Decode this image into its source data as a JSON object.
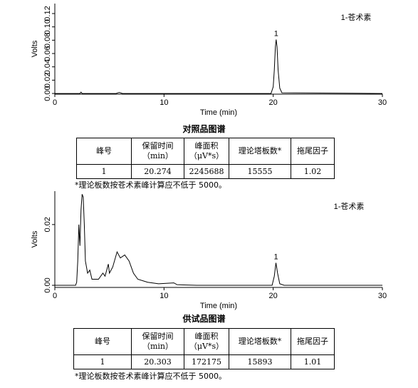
{
  "chart_data": [
    {
      "type": "line",
      "x_label": "Time (min)",
      "y_label": "Volts",
      "annotation": "1-苍术素",
      "peak_label": "1",
      "color": "#000000",
      "x": [
        0,
        2.3,
        2.4,
        2.5,
        3.2,
        5.6,
        5.9,
        6.2,
        19.8,
        20.0,
        20.1,
        20.2,
        20.27,
        20.35,
        20.45,
        20.6,
        20.8,
        30
      ],
      "values": [
        0,
        0,
        0.002,
        0,
        0,
        0,
        0.0015,
        0,
        0,
        0.01,
        0.035,
        0.07,
        0.081,
        0.07,
        0.035,
        0.008,
        0.001,
        0
      ],
      "xlim": [
        0,
        30
      ],
      "xticks": [
        0,
        10,
        20,
        30
      ],
      "ylim": [
        -0.001,
        0.135
      ],
      "yticks": [
        {
          "value": 0,
          "label": "0.00"
        },
        {
          "value": 0.02,
          "label": "0.02"
        },
        {
          "value": 0.04,
          "label": "0.04"
        },
        {
          "value": 0.06,
          "label": "0.06"
        },
        {
          "value": 0.08,
          "label": "0.08"
        },
        {
          "value": 0.1,
          "label": "0.10"
        },
        {
          "value": 0.12,
          "label": "0.12"
        }
      ]
    },
    {
      "type": "line",
      "x_label": "Time (min)",
      "y_label": "Volts",
      "annotation": "1-苍术素",
      "peak_label": "1",
      "color": "#000000",
      "x": [
        0,
        1.9,
        2.0,
        2.1,
        2.2,
        2.3,
        2.4,
        2.5,
        2.6,
        2.7,
        2.8,
        3.0,
        3.2,
        3.4,
        4.0,
        4.4,
        4.6,
        4.9,
        5.0,
        5.3,
        5.7,
        6.0,
        6.4,
        6.8,
        7.2,
        7.6,
        8.5,
        9.5,
        10.9,
        11.2,
        13,
        19.9,
        20.1,
        20.25,
        20.4,
        20.6,
        21,
        30
      ],
      "values": [
        0,
        0,
        0.001,
        0.008,
        0.02,
        0.013,
        0.025,
        0.03,
        0.029,
        0.02,
        0.008,
        0.004,
        0.005,
        0.002,
        0.002,
        0.004,
        0.003,
        0.007,
        0.004,
        0.006,
        0.011,
        0.009,
        0.01,
        0.008,
        0.004,
        0.002,
        0.001,
        0.0005,
        0.0008,
        0.0002,
        0,
        0,
        0.003,
        0.0074,
        0.004,
        0.0005,
        0,
        0
      ],
      "xlim": [
        0,
        30
      ],
      "xticks": [
        0,
        10,
        20,
        30
      ],
      "ylim": [
        -0.0007,
        0.031
      ],
      "yticks": [
        {
          "value": 0,
          "label": "0.00"
        },
        {
          "value": 0.02,
          "label": "0.02"
        }
      ]
    }
  ],
  "sections": [
    {
      "caption": "对照品图谱",
      "table": {
        "header": [
          [
            "峰号"
          ],
          [
            "保留时间",
            "（min）"
          ],
          [
            "峰面积",
            "（μV*s）"
          ],
          [
            "理论塔板数*"
          ],
          [
            "拖尾因子"
          ]
        ],
        "rows": [
          [
            "1",
            "20.274",
            "2245688",
            "15555",
            "1.02"
          ]
        ]
      },
      "note": "*理论板数按苍术素峰计算应不低于 5000。"
    },
    {
      "caption": "供试品图谱",
      "table": {
        "header": [
          [
            "峰号"
          ],
          [
            "保留时间",
            "（min）"
          ],
          [
            "峰面积",
            "（μV*s）"
          ],
          [
            "理论塔板数*"
          ],
          [
            "拖尾因子"
          ]
        ],
        "rows": [
          [
            "1",
            "20.303",
            "172175",
            "15893",
            "1.01"
          ]
        ]
      },
      "note": "*理论板数按苍术素峰计算应不低于 5000。"
    }
  ]
}
